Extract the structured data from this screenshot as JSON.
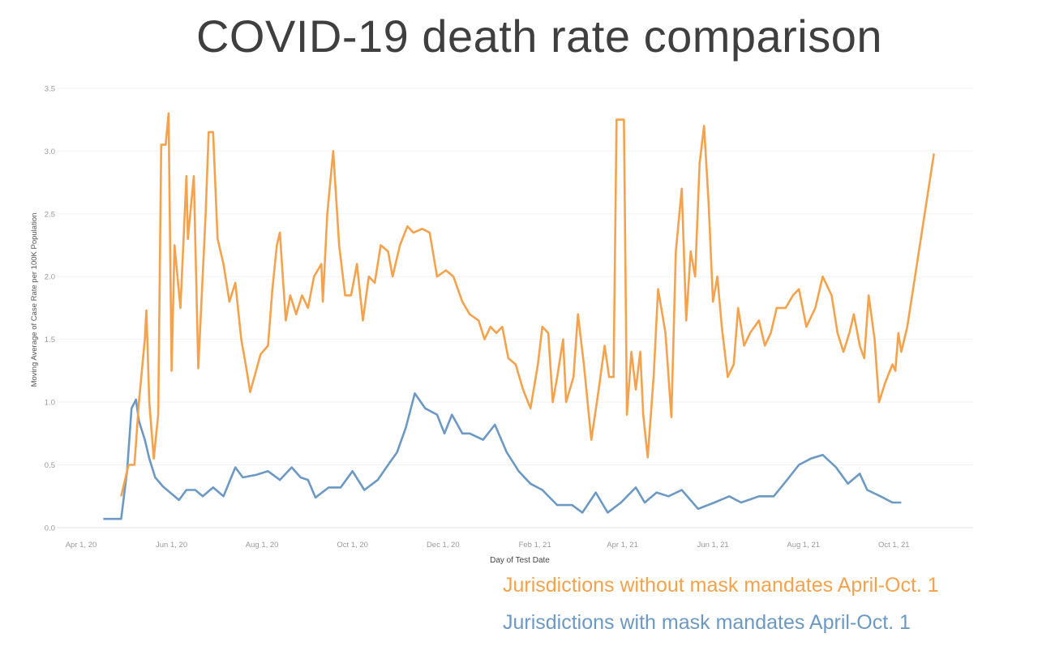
{
  "chart_data": {
    "type": "line",
    "title": "COVID-19 death rate comparison",
    "xlabel": "Day of Test Date",
    "ylabel": "Moving Average of Case Rate per 100K Population",
    "ylim": [
      0,
      3.5
    ],
    "xlim": [
      "2020-03-15",
      "2021-11-25"
    ],
    "yticks": [
      "0.0",
      "0.5",
      "1.0",
      "1.5",
      "2.0",
      "2.5",
      "3.0",
      "3.5"
    ],
    "xticks": [
      {
        "date": "2020-04-01",
        "label": "Apr 1, 20"
      },
      {
        "date": "2020-06-01",
        "label": "Jun 1, 20"
      },
      {
        "date": "2020-08-01",
        "label": "Aug 1, 20"
      },
      {
        "date": "2020-10-01",
        "label": "Oct 1, 20"
      },
      {
        "date": "2020-12-01",
        "label": "Dec 1, 20"
      },
      {
        "date": "2021-02-01",
        "label": "Feb 1, 21"
      },
      {
        "date": "2021-04-01",
        "label": "Apr 1, 21"
      },
      {
        "date": "2021-06-01",
        "label": "Jun 1, 21"
      },
      {
        "date": "2021-08-01",
        "label": "Aug 1, 21"
      },
      {
        "date": "2021-10-01",
        "label": "Oct 1, 21"
      }
    ],
    "grid": true,
    "legend_position": "bottom-right",
    "series": [
      {
        "name": "Jurisdictions without mask mandates April-Oct. 1",
        "color": "#f4a24c",
        "points": [
          [
            "2020-04-28",
            0.25
          ],
          [
            "2020-05-03",
            0.5
          ],
          [
            "2020-05-07",
            0.5
          ],
          [
            "2020-05-10",
            1.0
          ],
          [
            "2020-05-14",
            1.5
          ],
          [
            "2020-05-15",
            1.73
          ],
          [
            "2020-05-17",
            1.0
          ],
          [
            "2020-05-20",
            0.55
          ],
          [
            "2020-05-23",
            0.9
          ],
          [
            "2020-05-25",
            3.05
          ],
          [
            "2020-05-28",
            3.05
          ],
          [
            "2020-05-30",
            3.3
          ],
          [
            "2020-06-01",
            1.25
          ],
          [
            "2020-06-03",
            2.25
          ],
          [
            "2020-06-07",
            1.75
          ],
          [
            "2020-06-11",
            2.8
          ],
          [
            "2020-06-12",
            2.3
          ],
          [
            "2020-06-16",
            2.8
          ],
          [
            "2020-06-19",
            1.27
          ],
          [
            "2020-06-24",
            2.5
          ],
          [
            "2020-06-26",
            3.15
          ],
          [
            "2020-06-29",
            3.15
          ],
          [
            "2020-07-02",
            2.3
          ],
          [
            "2020-07-06",
            2.1
          ],
          [
            "2020-07-10",
            1.8
          ],
          [
            "2020-07-14",
            1.95
          ],
          [
            "2020-07-18",
            1.5
          ],
          [
            "2020-07-21",
            1.3
          ],
          [
            "2020-07-24",
            1.08
          ],
          [
            "2020-07-28",
            1.25
          ],
          [
            "2020-07-31",
            1.38
          ],
          [
            "2020-08-05",
            1.45
          ],
          [
            "2020-08-08",
            1.9
          ],
          [
            "2020-08-11",
            2.25
          ],
          [
            "2020-08-13",
            2.35
          ],
          [
            "2020-08-17",
            1.65
          ],
          [
            "2020-08-20",
            1.85
          ],
          [
            "2020-08-24",
            1.7
          ],
          [
            "2020-08-28",
            1.85
          ],
          [
            "2020-09-01",
            1.75
          ],
          [
            "2020-09-05",
            2.0
          ],
          [
            "2020-09-10",
            2.1
          ],
          [
            "2020-09-11",
            1.8
          ],
          [
            "2020-09-14",
            2.5
          ],
          [
            "2020-09-18",
            3.0
          ],
          [
            "2020-09-22",
            2.25
          ],
          [
            "2020-09-26",
            1.85
          ],
          [
            "2020-09-30",
            1.85
          ],
          [
            "2020-10-04",
            2.1
          ],
          [
            "2020-10-08",
            1.65
          ],
          [
            "2020-10-12",
            2.0
          ],
          [
            "2020-10-16",
            1.95
          ],
          [
            "2020-10-20",
            2.25
          ],
          [
            "2020-10-25",
            2.2
          ],
          [
            "2020-10-28",
            2.0
          ],
          [
            "2020-11-02",
            2.25
          ],
          [
            "2020-11-07",
            2.4
          ],
          [
            "2020-11-11",
            2.35
          ],
          [
            "2020-11-17",
            2.38
          ],
          [
            "2020-11-22",
            2.35
          ],
          [
            "2020-11-27",
            2.0
          ],
          [
            "2020-12-03",
            2.05
          ],
          [
            "2020-12-08",
            2.0
          ],
          [
            "2020-12-14",
            1.8
          ],
          [
            "2020-12-19",
            1.7
          ],
          [
            "2020-12-25",
            1.65
          ],
          [
            "2020-12-29",
            1.5
          ],
          [
            "2021-01-02",
            1.6
          ],
          [
            "2021-01-06",
            1.55
          ],
          [
            "2021-01-10",
            1.6
          ],
          [
            "2021-01-14",
            1.35
          ],
          [
            "2021-01-19",
            1.3
          ],
          [
            "2021-01-24",
            1.1
          ],
          [
            "2021-01-29",
            0.95
          ],
          [
            "2021-02-03",
            1.3
          ],
          [
            "2021-02-06",
            1.6
          ],
          [
            "2021-02-10",
            1.55
          ],
          [
            "2021-02-13",
            1.0
          ],
          [
            "2021-02-16",
            1.2
          ],
          [
            "2021-02-20",
            1.5
          ],
          [
            "2021-02-22",
            1.0
          ],
          [
            "2021-02-27",
            1.2
          ],
          [
            "2021-03-02",
            1.7
          ],
          [
            "2021-03-06",
            1.3
          ],
          [
            "2021-03-11",
            0.7
          ],
          [
            "2021-03-16",
            1.1
          ],
          [
            "2021-03-20",
            1.45
          ],
          [
            "2021-03-23",
            1.2
          ],
          [
            "2021-03-26",
            1.2
          ],
          [
            "2021-03-28",
            3.25
          ],
          [
            "2021-04-02",
            3.25
          ],
          [
            "2021-04-04",
            0.9
          ],
          [
            "2021-04-07",
            1.4
          ],
          [
            "2021-04-10",
            1.1
          ],
          [
            "2021-04-13",
            1.4
          ],
          [
            "2021-04-15",
            0.9
          ],
          [
            "2021-04-18",
            0.56
          ],
          [
            "2021-04-22",
            1.2
          ],
          [
            "2021-04-25",
            1.9
          ],
          [
            "2021-04-30",
            1.55
          ],
          [
            "2021-05-04",
            0.88
          ],
          [
            "2021-05-07",
            2.2
          ],
          [
            "2021-05-11",
            2.7
          ],
          [
            "2021-05-14",
            1.65
          ],
          [
            "2021-05-17",
            2.2
          ],
          [
            "2021-05-20",
            2.0
          ],
          [
            "2021-05-23",
            2.9
          ],
          [
            "2021-05-26",
            3.2
          ],
          [
            "2021-05-29",
            2.6
          ],
          [
            "2021-06-01",
            1.8
          ],
          [
            "2021-06-04",
            2.0
          ],
          [
            "2021-06-07",
            1.6
          ],
          [
            "2021-06-11",
            1.2
          ],
          [
            "2021-06-15",
            1.3
          ],
          [
            "2021-06-18",
            1.75
          ],
          [
            "2021-06-22",
            1.45
          ],
          [
            "2021-06-26",
            1.55
          ],
          [
            "2021-07-02",
            1.65
          ],
          [
            "2021-07-06",
            1.45
          ],
          [
            "2021-07-10",
            1.55
          ],
          [
            "2021-07-14",
            1.75
          ],
          [
            "2021-07-20",
            1.75
          ],
          [
            "2021-07-25",
            1.85
          ],
          [
            "2021-07-29",
            1.9
          ],
          [
            "2021-08-03",
            1.6
          ],
          [
            "2021-08-09",
            1.75
          ],
          [
            "2021-08-14",
            2.0
          ],
          [
            "2021-08-20",
            1.85
          ],
          [
            "2021-08-24",
            1.55
          ],
          [
            "2021-08-28",
            1.4
          ],
          [
            "2021-09-01",
            1.55
          ],
          [
            "2021-09-04",
            1.7
          ],
          [
            "2021-09-08",
            1.45
          ],
          [
            "2021-09-11",
            1.35
          ],
          [
            "2021-09-14",
            1.85
          ],
          [
            "2021-09-18",
            1.5
          ],
          [
            "2021-09-21",
            1.0
          ],
          [
            "2021-09-25",
            1.15
          ],
          [
            "2021-09-30",
            1.3
          ],
          [
            "2021-10-02",
            1.25
          ],
          [
            "2021-10-04",
            1.55
          ],
          [
            "2021-10-06",
            1.4
          ],
          [
            "2021-10-10",
            1.6
          ],
          [
            "2021-10-28",
            2.98
          ]
        ]
      },
      {
        "name": "Jurisdictions with mask mandates April-Oct. 1",
        "color": "#6c99c4",
        "points": [
          [
            "2020-04-16",
            0.07
          ],
          [
            "2020-04-28",
            0.07
          ],
          [
            "2020-05-02",
            0.45
          ],
          [
            "2020-05-05",
            0.95
          ],
          [
            "2020-05-08",
            1.02
          ],
          [
            "2020-05-10",
            0.85
          ],
          [
            "2020-05-14",
            0.7
          ],
          [
            "2020-05-17",
            0.55
          ],
          [
            "2020-05-21",
            0.4
          ],
          [
            "2020-05-26",
            0.33
          ],
          [
            "2020-05-31",
            0.28
          ],
          [
            "2020-06-06",
            0.22
          ],
          [
            "2020-06-11",
            0.3
          ],
          [
            "2020-06-17",
            0.3
          ],
          [
            "2020-06-22",
            0.25
          ],
          [
            "2020-06-29",
            0.32
          ],
          [
            "2020-07-06",
            0.25
          ],
          [
            "2020-07-14",
            0.48
          ],
          [
            "2020-07-19",
            0.4
          ],
          [
            "2020-07-28",
            0.42
          ],
          [
            "2020-08-05",
            0.45
          ],
          [
            "2020-08-13",
            0.38
          ],
          [
            "2020-08-21",
            0.48
          ],
          [
            "2020-08-27",
            0.4
          ],
          [
            "2020-09-01",
            0.38
          ],
          [
            "2020-09-06",
            0.24
          ],
          [
            "2020-09-15",
            0.32
          ],
          [
            "2020-09-23",
            0.32
          ],
          [
            "2020-10-01",
            0.45
          ],
          [
            "2020-10-09",
            0.3
          ],
          [
            "2020-10-18",
            0.38
          ],
          [
            "2020-10-25",
            0.5
          ],
          [
            "2020-10-31",
            0.6
          ],
          [
            "2020-11-06",
            0.8
          ],
          [
            "2020-11-12",
            1.07
          ],
          [
            "2020-11-19",
            0.95
          ],
          [
            "2020-11-27",
            0.9
          ],
          [
            "2020-12-02",
            0.75
          ],
          [
            "2020-12-07",
            0.9
          ],
          [
            "2020-12-14",
            0.75
          ],
          [
            "2020-12-19",
            0.75
          ],
          [
            "2020-12-28",
            0.7
          ],
          [
            "2021-01-05",
            0.82
          ],
          [
            "2021-01-13",
            0.6
          ],
          [
            "2021-01-21",
            0.45
          ],
          [
            "2021-01-29",
            0.35
          ],
          [
            "2021-02-06",
            0.3
          ],
          [
            "2021-02-16",
            0.18
          ],
          [
            "2021-02-26",
            0.18
          ],
          [
            "2021-03-05",
            0.12
          ],
          [
            "2021-03-14",
            0.28
          ],
          [
            "2021-03-22",
            0.12
          ],
          [
            "2021-03-31",
            0.2
          ],
          [
            "2021-04-10",
            0.32
          ],
          [
            "2021-04-16",
            0.2
          ],
          [
            "2021-04-24",
            0.28
          ],
          [
            "2021-05-02",
            0.25
          ],
          [
            "2021-05-11",
            0.3
          ],
          [
            "2021-05-22",
            0.15
          ],
          [
            "2021-06-02",
            0.2
          ],
          [
            "2021-06-12",
            0.25
          ],
          [
            "2021-06-20",
            0.2
          ],
          [
            "2021-07-02",
            0.25
          ],
          [
            "2021-07-12",
            0.25
          ],
          [
            "2021-07-21",
            0.38
          ],
          [
            "2021-07-29",
            0.5
          ],
          [
            "2021-08-06",
            0.55
          ],
          [
            "2021-08-14",
            0.58
          ],
          [
            "2021-08-23",
            0.48
          ],
          [
            "2021-08-31",
            0.35
          ],
          [
            "2021-09-08",
            0.43
          ],
          [
            "2021-09-13",
            0.3
          ],
          [
            "2021-09-22",
            0.25
          ],
          [
            "2021-09-30",
            0.2
          ],
          [
            "2021-10-06",
            0.2
          ]
        ]
      }
    ]
  }
}
